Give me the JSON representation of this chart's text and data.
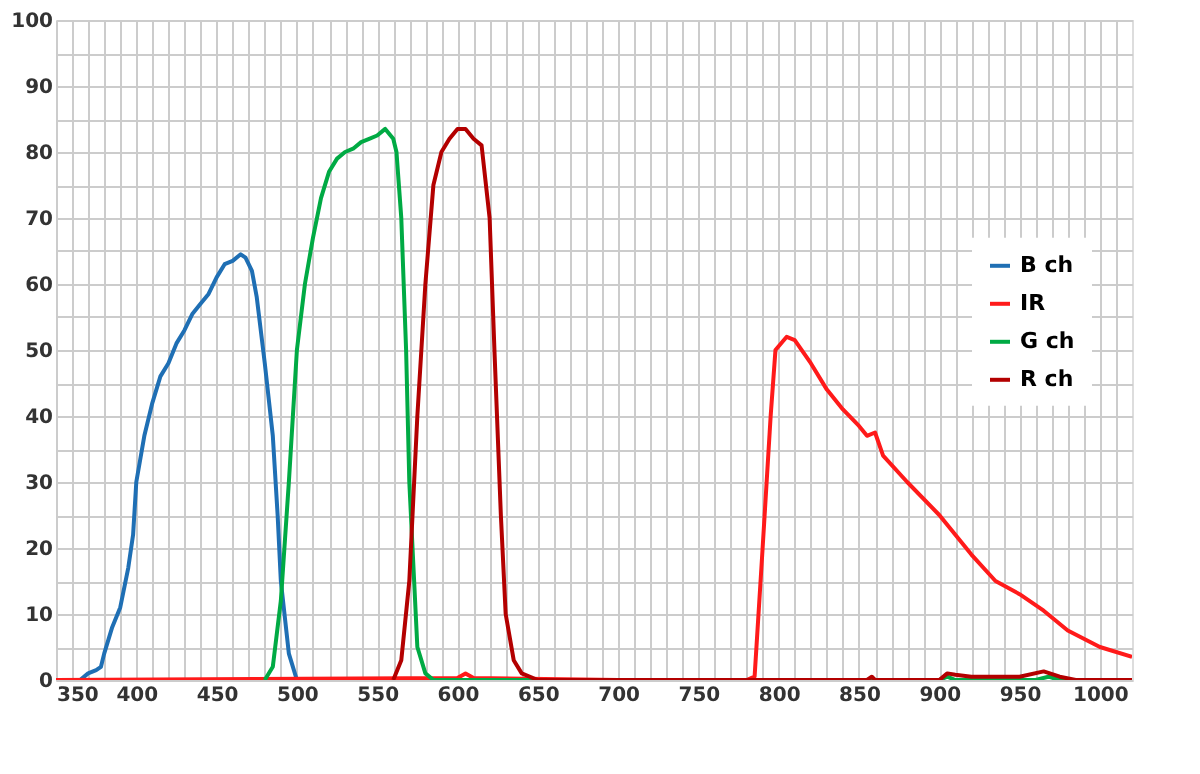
{
  "chart_data": {
    "type": "line",
    "xlim": [
      350,
      1020
    ],
    "ylim": [
      0,
      100
    ],
    "xticks": [
      350,
      {
        "value": 360,
        "label": null
      },
      {
        "value": 370,
        "label": null
      },
      {
        "value": 380,
        "label": null
      },
      {
        "value": 390,
        "label": null
      },
      400,
      {
        "value": 410,
        "label": null
      },
      {
        "value": 420,
        "label": null
      },
      {
        "value": 430,
        "label": null
      },
      {
        "value": 440,
        "label": null
      },
      450,
      {
        "value": 460,
        "label": null
      },
      {
        "value": 470,
        "label": null
      },
      {
        "value": 480,
        "label": null
      },
      {
        "value": 490,
        "label": null
      },
      500,
      {
        "value": 510,
        "label": null
      },
      {
        "value": 520,
        "label": null
      },
      {
        "value": 530,
        "label": null
      },
      {
        "value": 540,
        "label": null
      },
      550,
      {
        "value": 560,
        "label": null
      },
      {
        "value": 570,
        "label": null
      },
      {
        "value": 580,
        "label": null
      },
      {
        "value": 590,
        "label": null
      },
      600,
      {
        "value": 610,
        "label": null
      },
      {
        "value": 620,
        "label": null
      },
      {
        "value": 630,
        "label": null
      },
      {
        "value": 640,
        "label": null
      },
      650,
      {
        "value": 660,
        "label": null
      },
      {
        "value": 670,
        "label": null
      },
      {
        "value": 680,
        "label": null
      },
      {
        "value": 690,
        "label": null
      },
      700,
      {
        "value": 710,
        "label": null
      },
      {
        "value": 720,
        "label": null
      },
      {
        "value": 730,
        "label": null
      },
      {
        "value": 740,
        "label": null
      },
      750,
      {
        "value": 760,
        "label": null
      },
      {
        "value": 770,
        "label": null
      },
      {
        "value": 780,
        "label": null
      },
      {
        "value": 790,
        "label": null
      },
      800,
      {
        "value": 810,
        "label": null
      },
      {
        "value": 820,
        "label": null
      },
      {
        "value": 830,
        "label": null
      },
      {
        "value": 840,
        "label": null
      },
      850,
      {
        "value": 860,
        "label": null
      },
      {
        "value": 870,
        "label": null
      },
      {
        "value": 880,
        "label": null
      },
      {
        "value": 890,
        "label": null
      },
      900,
      {
        "value": 910,
        "label": null
      },
      {
        "value": 920,
        "label": null
      },
      {
        "value": 930,
        "label": null
      },
      {
        "value": 940,
        "label": null
      },
      950,
      {
        "value": 960,
        "label": null
      },
      {
        "value": 970,
        "label": null
      },
      {
        "value": 980,
        "label": null
      },
      {
        "value": 990,
        "label": null
      },
      1000,
      {
        "value": 1010,
        "label": null
      }
    ],
    "yticks": [
      0,
      {
        "value": 5,
        "label": null
      },
      10,
      {
        "value": 15,
        "label": null
      },
      20,
      {
        "value": 25,
        "label": null
      },
      30,
      {
        "value": 35,
        "label": null
      },
      40,
      {
        "value": 45,
        "label": null
      },
      50,
      {
        "value": 55,
        "label": null
      },
      60,
      {
        "value": 65,
        "label": null
      },
      70,
      {
        "value": 75,
        "label": null
      },
      80,
      {
        "value": 85,
        "label": null
      },
      90,
      {
        "value": 95,
        "label": null
      },
      100
    ],
    "grid": true,
    "legend": "right",
    "marker": "none",
    "line_style": "solid",
    "series": [
      {
        "name": "B ch",
        "color": "#1f6fb4",
        "x": [
          365,
          370,
          375,
          378,
          380,
          385,
          390,
          395,
          398,
          400,
          405,
          410,
          415,
          420,
          425,
          430,
          435,
          440,
          445,
          450,
          455,
          460,
          465,
          468,
          472,
          475,
          480,
          485,
          488,
          490,
          495,
          500
        ],
        "values": [
          0,
          1,
          1.5,
          2,
          4,
          8,
          11,
          17,
          22,
          30,
          37,
          42,
          46,
          48,
          51,
          53,
          55.5,
          57,
          58.5,
          61,
          63,
          63.5,
          64.5,
          64,
          62,
          58,
          48,
          37,
          25,
          15,
          4,
          0
        ]
      },
      {
        "name": "IR",
        "color": "#ff1a1a",
        "x": [
          350,
          600,
          605,
          610,
          700,
          780,
          785,
          790,
          795,
          798,
          805,
          810,
          820,
          830,
          840,
          850,
          855,
          860,
          865,
          880,
          900,
          920,
          935,
          950,
          965,
          980,
          1000,
          1020
        ],
        "values": [
          0,
          0.3,
          1,
          0.3,
          0,
          0,
          0.5,
          20,
          40,
          50,
          52,
          51.5,
          48,
          44,
          41,
          38.5,
          37,
          37.5,
          34,
          30,
          25,
          19,
          15,
          13,
          10.5,
          7.5,
          5,
          3.5
        ]
      },
      {
        "name": "G ch",
        "color": "#00aa44",
        "x": [
          480,
          485,
          490,
          495,
          500,
          505,
          510,
          515,
          520,
          525,
          530,
          535,
          540,
          545,
          550,
          555,
          560,
          562,
          565,
          568,
          570,
          573,
          575,
          580,
          585,
          900,
          905,
          910,
          960,
          968,
          975,
          1020
        ],
        "values": [
          0,
          2,
          12,
          30,
          50,
          60,
          67,
          73,
          77,
          79,
          80,
          80.5,
          81.5,
          82,
          82.5,
          83.5,
          82,
          80,
          70,
          50,
          30,
          15,
          5,
          1,
          0,
          0,
          0.5,
          0,
          0,
          0.5,
          0,
          0
        ]
      },
      {
        "name": "R ch",
        "color": "#b30000",
        "x": [
          560,
          565,
          570,
          575,
          580,
          585,
          590,
          595,
          600,
          605,
          610,
          615,
          620,
          623,
          627,
          630,
          635,
          640,
          650,
          855,
          858,
          860,
          900,
          905,
          910,
          920,
          950,
          965,
          975,
          985,
          1020
        ],
        "values": [
          0,
          3,
          15,
          40,
          60,
          75,
          80,
          82,
          83.5,
          83.5,
          82,
          81,
          70,
          50,
          25,
          10,
          3,
          1,
          0,
          0,
          0.5,
          0,
          0,
          1,
          0.8,
          0.5,
          0.5,
          1.3,
          0.5,
          0,
          0
        ]
      }
    ]
  }
}
